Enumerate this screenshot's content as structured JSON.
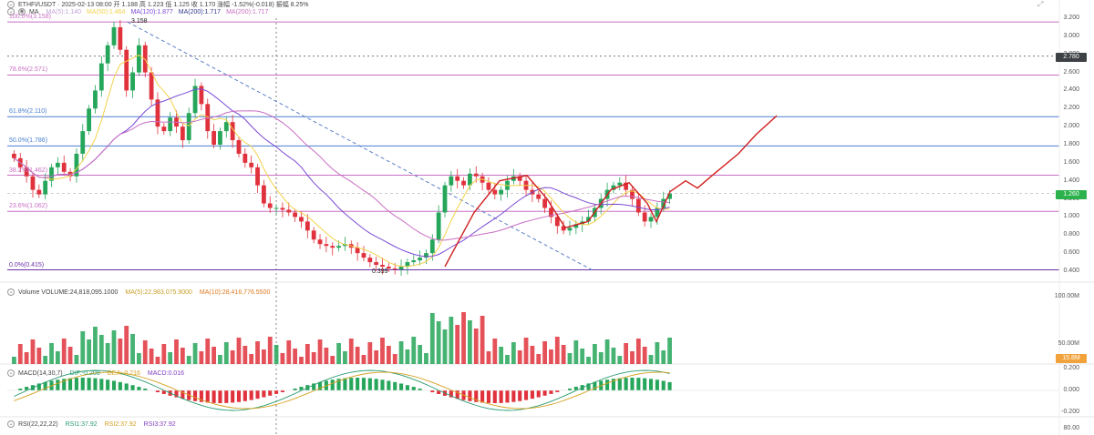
{
  "header": {
    "symbol_line": "ETHFI/USDT · 2025-02-13 08:00  开 1.188  高 1.223  低 1.125  收 1.170  涨幅 -1.52%(-0.018)  振幅 8.25%"
  },
  "ma_legend": {
    "name": "MA",
    "items": [
      {
        "label": "MA(5):1.140",
        "color": "#c0a6d6"
      },
      {
        "label": "MA(50):1.464",
        "color": "#f2d24b"
      },
      {
        "label": "MA(120):1.877",
        "color": "#7a4bd4"
      },
      {
        "label": "MA(200):1.717",
        "color": "#333a8c"
      },
      {
        "label": "MA(200):1.717",
        "color": "#c86fc3"
      }
    ]
  },
  "price_axis": {
    "ticks": [
      "3.200",
      "3.000",
      "2.800",
      "2.600",
      "2.400",
      "2.200",
      "2.000",
      "1.800",
      "1.600",
      "1.400",
      "1.200",
      "1.000",
      "0.800",
      "0.600",
      "0.400"
    ],
    "current_price": "1.260",
    "cursor_price": "2.780"
  },
  "fib_levels": [
    {
      "label": "100.0%(3.158)",
      "value": 3.158,
      "color": "#c86fc3"
    },
    {
      "label": "78.6%(2.571)",
      "value": 2.571,
      "color": "#c86fc3"
    },
    {
      "label": "61.8%(2.110)",
      "value": 2.11,
      "color": "#4a7fd0"
    },
    {
      "label": "50.0%(1.786)",
      "value": 1.786,
      "color": "#4a7fd0"
    },
    {
      "label": "38.2%(1.462)",
      "value": 1.462,
      "color": "#c86fc3"
    },
    {
      "label": "23.6%(1.062)",
      "value": 1.062,
      "color": "#c86fc3"
    },
    {
      "label": "0.0%(0.415)",
      "value": 0.415,
      "color": "#6b2fa8"
    }
  ],
  "annotations": {
    "high": "3.158",
    "low": "0.399"
  },
  "volume_legend": {
    "text": "Volume  VOLUME:24,818,095.1000",
    "ma5": "MA(5):22,983,075.9000",
    "ma10": "MA(10):28,416,776.5500",
    "ticks": [
      "100.00M",
      "50.00M"
    ],
    "current": "15.8M"
  },
  "macd_legend": {
    "name": "MACD(14,30,7)",
    "dif": "DIF:-0.208",
    "dea": "DEA:-0.216",
    "macd": "MACD:0.016",
    "ticks": [
      "0.200",
      "0.000",
      "-0.200"
    ]
  },
  "rsi_legend": {
    "name": "RSI(22,22,22)",
    "rsi1": "RSI1:37.92",
    "rsi2": "RSI2:37.92",
    "rsi3": "RSI3:37.92",
    "ticks": [
      "80.00"
    ]
  },
  "chart_data": {
    "type": "candlestick",
    "price_range": [
      0.4,
      3.2
    ],
    "closes_approx": [
      1.65,
      1.55,
      1.45,
      1.3,
      1.25,
      1.4,
      1.55,
      1.6,
      1.5,
      1.45,
      1.7,
      1.95,
      2.2,
      2.4,
      2.7,
      2.9,
      3.1,
      2.85,
      2.4,
      2.6,
      2.9,
      2.6,
      2.3,
      2.0,
      1.95,
      2.1,
      2.0,
      1.85,
      2.15,
      2.45,
      2.25,
      1.95,
      1.8,
      1.95,
      2.05,
      1.85,
      1.7,
      1.6,
      1.55,
      1.35,
      1.15,
      1.1,
      1.1,
      1.08,
      1.05,
      1.0,
      0.95,
      0.85,
      0.75,
      0.7,
      0.68,
      0.66,
      0.68,
      0.7,
      0.66,
      0.6,
      0.55,
      0.5,
      0.47,
      0.45,
      0.43,
      0.42,
      0.45,
      0.5,
      0.52,
      0.55,
      0.6,
      0.75,
      1.05,
      1.35,
      1.45,
      1.4,
      1.35,
      1.48,
      1.45,
      1.38,
      1.3,
      1.25,
      1.3,
      1.4,
      1.45,
      1.4,
      1.3,
      1.25,
      1.2,
      1.1,
      1.0,
      0.9,
      0.85,
      0.88,
      0.92,
      0.95,
      1.0,
      1.1,
      1.2,
      1.3,
      1.35,
      1.38,
      1.3,
      1.2,
      1.05,
      0.95,
      1.0,
      1.1,
      1.2,
      1.26
    ],
    "forecast_path": [
      [
        0.45,
        1
      ],
      [
        0.9,
        1.05
      ],
      [
        1.35,
        1.45
      ],
      [
        1.45,
        1.1
      ],
      [
        1.0,
        0.85
      ],
      [
        1.1,
        0.95
      ],
      [
        1.3,
        1.38
      ],
      [
        1.2,
        1.2
      ],
      [
        0.95,
        1.3
      ],
      [
        1.3,
        1.38
      ],
      [
        1.35,
        1.45
      ],
      [
        1.45,
        1.45
      ],
      [
        1.75,
        1.75
      ],
      [
        2.1,
        2.1
      ]
    ]
  }
}
